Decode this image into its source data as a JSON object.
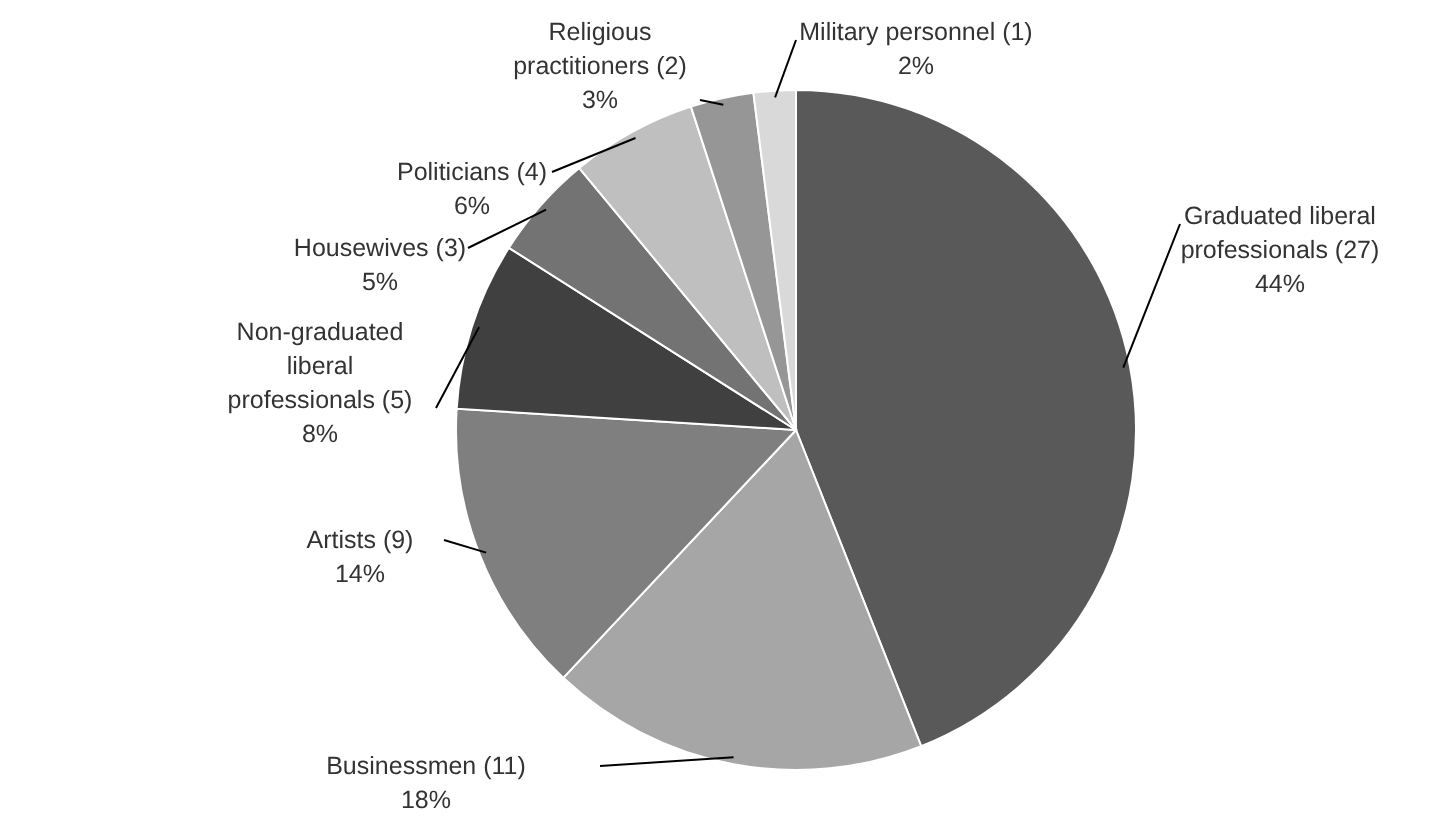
{
  "chart_data": {
    "type": "pie",
    "categories": [
      "Graduated liberal professionals (27)",
      "Businessmen (11)",
      "Artists (9)",
      "Non-graduated liberal professionals (5)",
      "Housewives (3)",
      "Politicians (4)",
      "Religious practitioners (2)",
      "Military personnel (1)"
    ],
    "values": [
      44,
      18,
      14,
      8,
      5,
      6,
      3,
      2
    ],
    "value_labels": [
      "44%",
      "18%",
      "14%",
      "8%",
      "5%",
      "6%",
      "3%",
      "2%"
    ],
    "colors": [
      "#595959",
      "#a6a6a6",
      "#7f7f7f",
      "#404040",
      "#737373",
      "#bfbfbf",
      "#969696",
      "#d9d9d9"
    ]
  }
}
